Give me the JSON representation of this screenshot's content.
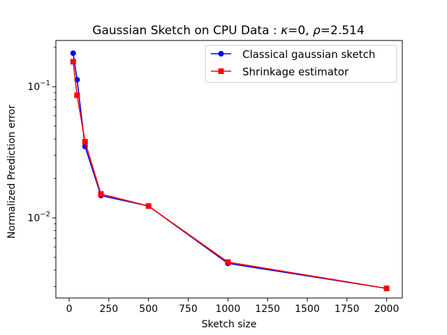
{
  "chart_data": {
    "type": "line",
    "title": "Gaussian Sketch on CPU Data : κ=0, ρ=2.514",
    "title_parts": {
      "prefix": "Gaussian Sketch on CPU Data : ",
      "kappa_symbol": "κ",
      "kappa_value": "=0, ",
      "rho_symbol": "ρ",
      "rho_value": "=2.514"
    },
    "xlabel": "Sketch size",
    "ylabel": "Normalized Prediction error",
    "xscale": "linear",
    "yscale": "log",
    "xlim": [
      -83.75,
      2098.75
    ],
    "ylim": [
      0.00245,
      0.225
    ],
    "xticks": [
      0,
      250,
      500,
      750,
      1000,
      1250,
      1500,
      1750,
      2000
    ],
    "xtick_labels": [
      "0",
      "250",
      "500",
      "750",
      "1000",
      "1250",
      "1500",
      "1750",
      "2000"
    ],
    "yticks_major": [
      0.01,
      0.1
    ],
    "ytick_labels": [
      {
        "base": "10",
        "exp": "−2"
      },
      {
        "base": "10",
        "exp": "−1"
      }
    ],
    "grid": false,
    "legend_position": "top-right",
    "series": [
      {
        "name": "Classical gaussian sketch",
        "color": "#0000ff",
        "marker": "circle",
        "x": [
          25,
          50,
          100,
          200,
          500,
          1000,
          2000
        ],
        "y": [
          0.18,
          0.113,
          0.035,
          0.0148,
          0.0123,
          0.0045,
          0.0029
        ]
      },
      {
        "name": "Shrinkage estimator",
        "color": "#ff0000",
        "marker": "square",
        "x": [
          25,
          50,
          100,
          200,
          500,
          1000,
          2000
        ],
        "y": [
          0.155,
          0.086,
          0.038,
          0.0152,
          0.0123,
          0.0046,
          0.0029
        ]
      }
    ]
  }
}
